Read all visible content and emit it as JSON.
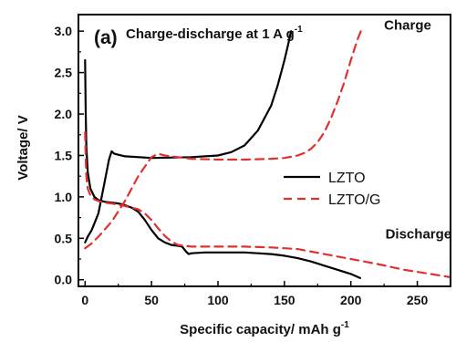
{
  "chart_data": {
    "type": "line",
    "panel_label": "(a)",
    "title": "Charge-discharge at 1 A g",
    "title_superscript": "-1",
    "xlabel": "Specific capacity/ mAh g",
    "xlabel_superscript": "-1",
    "ylabel": "Voltage/ V",
    "xlim": [
      -5,
      275
    ],
    "ylim": [
      -0.08,
      3.2
    ],
    "x_ticks": [
      0,
      50,
      100,
      150,
      200,
      250
    ],
    "y_ticks": [
      0.0,
      0.5,
      1.0,
      1.5,
      2.0,
      2.5,
      3.0
    ],
    "y_tick_labels": [
      "0.0",
      "0.5",
      "1.0",
      "1.5",
      "2.0",
      "2.5",
      "3.0"
    ],
    "grid": false,
    "legend_position": "center-right",
    "annotations": [
      {
        "text": "Charge",
        "x": 225,
        "y": 3.02
      },
      {
        "text": "Discharge",
        "x": 226,
        "y": 0.5
      }
    ],
    "series": [
      {
        "name": "LZTO",
        "color": "#000000",
        "style": "solid",
        "curves": [
          {
            "label": "charge",
            "x": [
              0,
              2,
              5,
              10,
              15,
              18,
              20,
              22,
              30,
              50,
              80,
              100,
              110,
              120,
              130,
              140,
              145,
              150,
              153,
              155
            ],
            "y": [
              0.45,
              0.52,
              0.6,
              0.8,
              1.2,
              1.45,
              1.55,
              1.52,
              1.49,
              1.47,
              1.48,
              1.5,
              1.54,
              1.62,
              1.8,
              2.1,
              2.35,
              2.65,
              2.85,
              3.0
            ]
          },
          {
            "label": "discharge",
            "x": [
              0,
              0.5,
              1,
              2,
              4,
              7,
              10,
              15,
              20,
              25,
              30,
              35,
              40,
              45,
              50,
              55,
              60,
              65,
              70,
              73,
              76,
              78,
              80,
              90,
              100,
              110,
              120,
              130,
              140,
              150,
              160,
              170,
              180,
              190,
              200,
              207
            ],
            "y": [
              2.65,
              2.0,
              1.6,
              1.3,
              1.1,
              1.0,
              0.96,
              0.94,
              0.93,
              0.92,
              0.9,
              0.87,
              0.82,
              0.72,
              0.6,
              0.5,
              0.45,
              0.42,
              0.41,
              0.4,
              0.34,
              0.31,
              0.32,
              0.33,
              0.33,
              0.33,
              0.33,
              0.32,
              0.31,
              0.29,
              0.26,
              0.22,
              0.17,
              0.12,
              0.07,
              0.02
            ]
          }
        ]
      },
      {
        "name": "LZTO/G",
        "color": "#e0312f",
        "style": "dashed",
        "curves": [
          {
            "label": "charge",
            "x": [
              0,
              5,
              10,
              20,
              30,
              40,
              50,
              55,
              60,
              80,
              100,
              120,
              140,
              150,
              160,
              165,
              170,
              175,
              180,
              185,
              190,
              195,
              200,
              203,
              205,
              208
            ],
            "y": [
              0.38,
              0.44,
              0.52,
              0.7,
              0.95,
              1.25,
              1.48,
              1.52,
              1.5,
              1.46,
              1.45,
              1.45,
              1.46,
              1.47,
              1.5,
              1.53,
              1.58,
              1.66,
              1.78,
              1.95,
              2.15,
              2.38,
              2.65,
              2.8,
              2.9,
              3.02
            ]
          },
          {
            "label": "discharge",
            "x": [
              0,
              0.5,
              1,
              2,
              4,
              7,
              10,
              15,
              20,
              30,
              40,
              45,
              50,
              55,
              60,
              65,
              70,
              75,
              80,
              100,
              120,
              140,
              150,
              160,
              170,
              180,
              190,
              200,
              220,
              240,
              260,
              275
            ],
            "y": [
              1.78,
              1.45,
              1.25,
              1.1,
              1.02,
              0.97,
              0.95,
              0.93,
              0.92,
              0.89,
              0.85,
              0.8,
              0.72,
              0.62,
              0.53,
              0.46,
              0.42,
              0.41,
              0.4,
              0.4,
              0.4,
              0.39,
              0.38,
              0.37,
              0.34,
              0.31,
              0.28,
              0.25,
              0.19,
              0.12,
              0.07,
              0.03
            ]
          }
        ]
      }
    ]
  }
}
